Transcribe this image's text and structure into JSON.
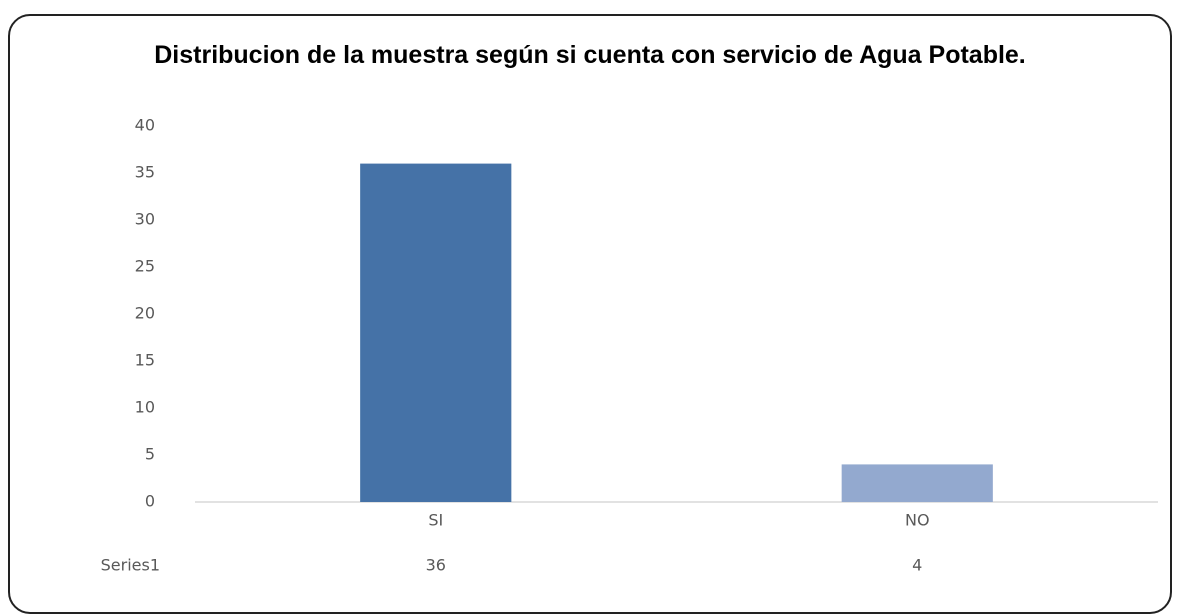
{
  "chart_data": {
    "type": "bar",
    "title": "Distribucion de la muestra según si cuenta con servicio de Agua Potable.",
    "categories": [
      "SI",
      "NO"
    ],
    "series": [
      {
        "name": "Series1",
        "colors": [
          "#4572a7",
          "#93a9cf"
        ],
        "values": [
          36,
          4
        ]
      }
    ],
    "ylim": [
      0,
      40
    ],
    "yticks": [
      0,
      5,
      10,
      15,
      20,
      25,
      30,
      35,
      40
    ],
    "grid": false
  }
}
